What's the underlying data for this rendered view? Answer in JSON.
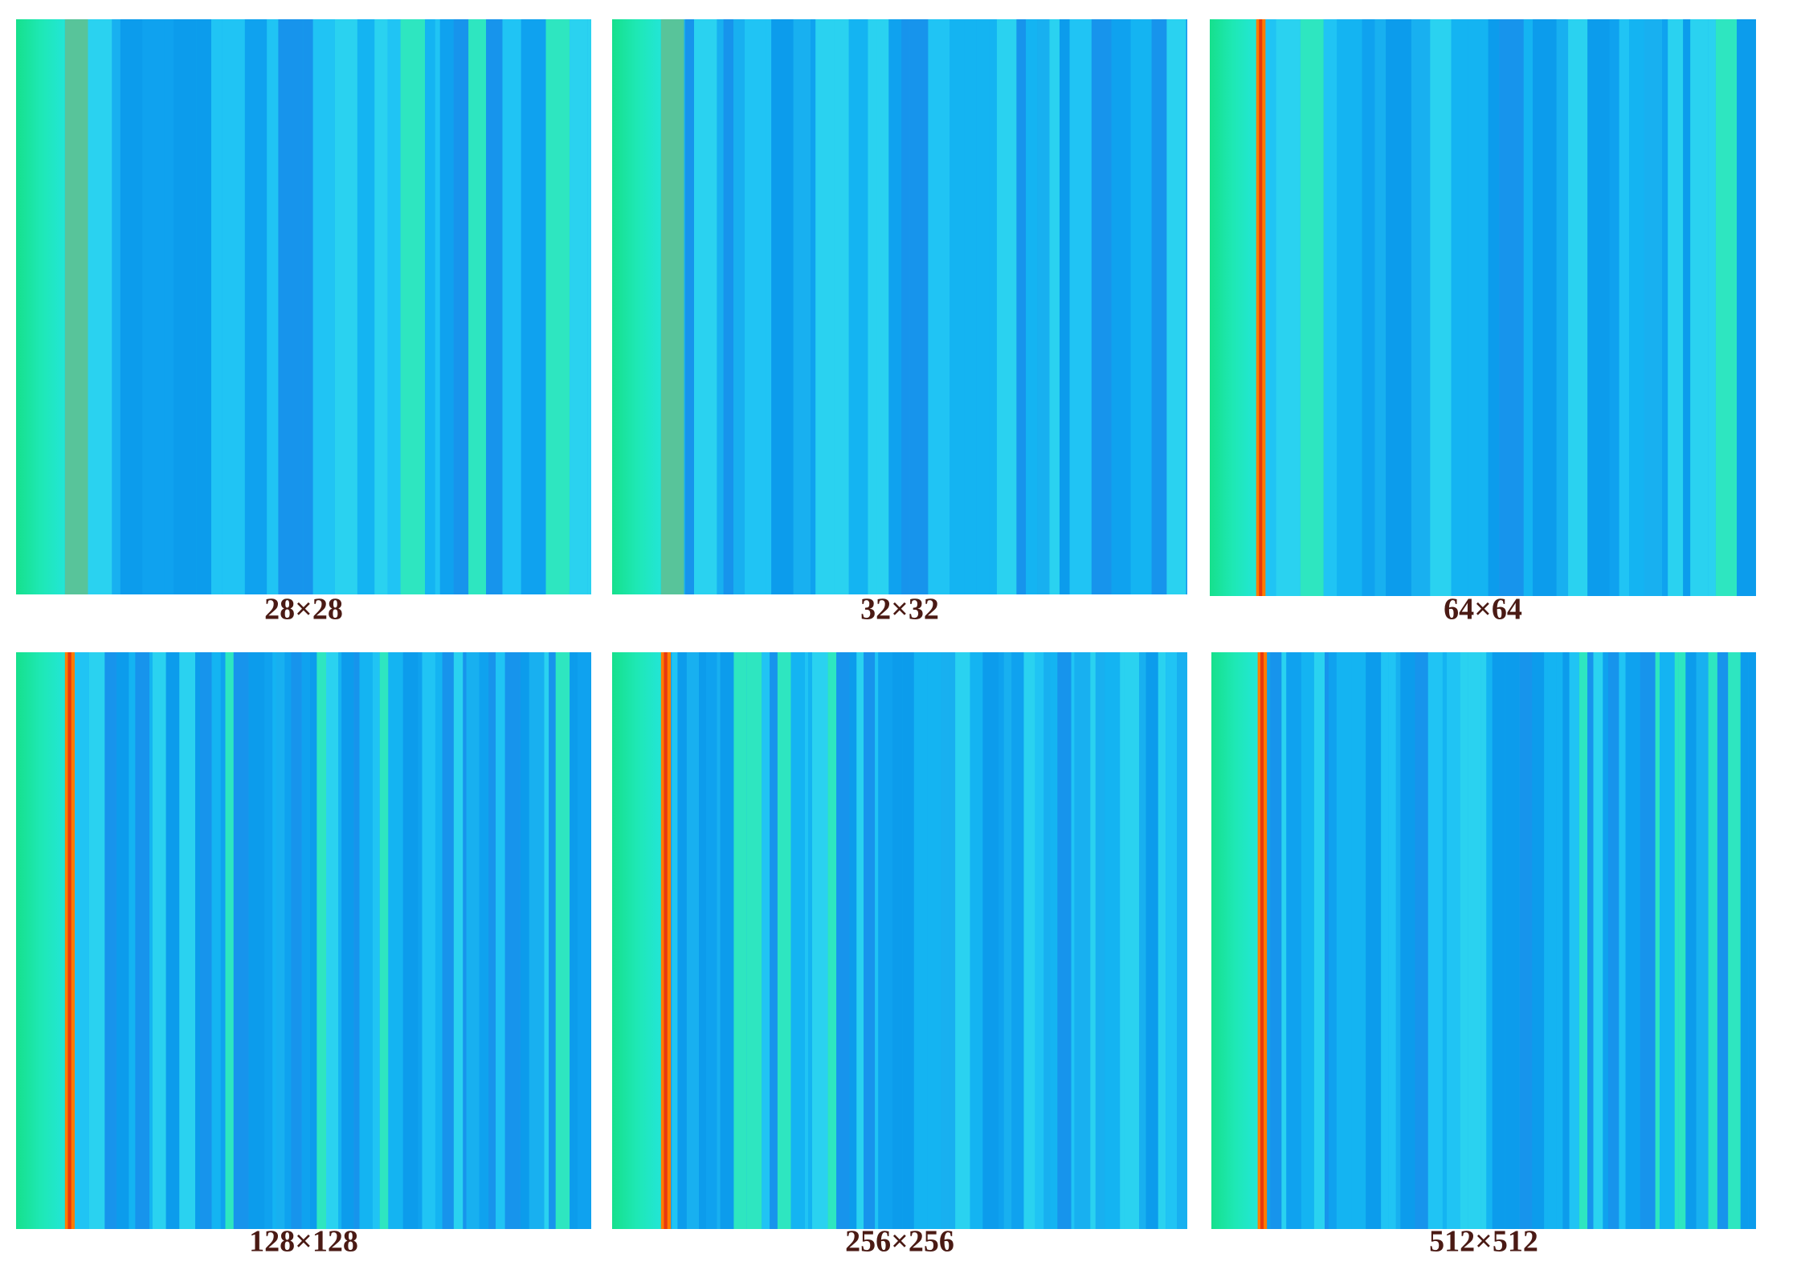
{
  "panels": [
    {
      "caption": "28×28"
    },
    {
      "caption": "32×32"
    },
    {
      "caption": "64×64"
    },
    {
      "caption": "128×128"
    },
    {
      "caption": "256×256"
    },
    {
      "caption": "512×512"
    }
  ]
}
